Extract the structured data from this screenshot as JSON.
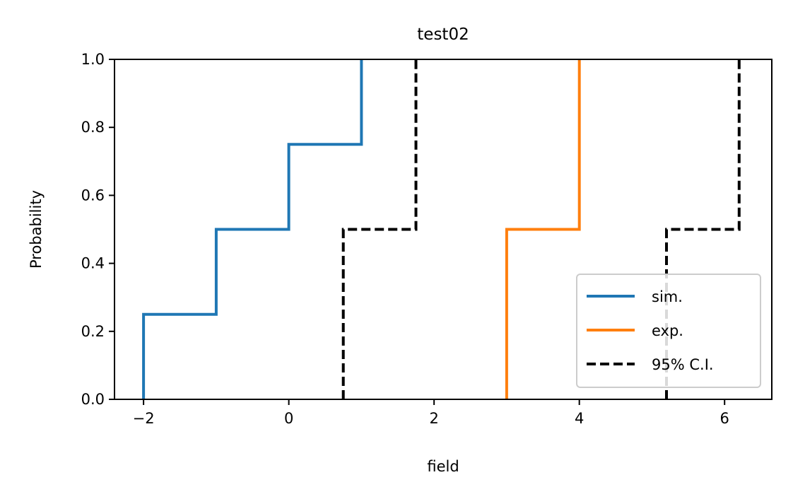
{
  "chart_data": {
    "type": "line",
    "title": "test02",
    "xlabel": "field",
    "ylabel": "Probability",
    "xlim": [
      -2.4,
      6.65
    ],
    "ylim": [
      0,
      1.0
    ],
    "xticks": [
      -2,
      0,
      2,
      4,
      6
    ],
    "xtick_labels": [
      "−2",
      "0",
      "2",
      "4",
      "6"
    ],
    "yticks": [
      0.0,
      0.2,
      0.4,
      0.6,
      0.8,
      1.0
    ],
    "ytick_labels": [
      "0.0",
      "0.2",
      "0.4",
      "0.6",
      "0.8",
      "1.0"
    ],
    "grid": false,
    "legend_position": "lower-right",
    "series": [
      {
        "name": "sim.",
        "color": "#1f77b4",
        "style": "solid",
        "points": [
          [
            -2,
            0
          ],
          [
            -2,
            0.25
          ],
          [
            -1,
            0.25
          ],
          [
            -1,
            0.5
          ],
          [
            0,
            0.5
          ],
          [
            0,
            0.75
          ],
          [
            1,
            0.75
          ],
          [
            1,
            1.0
          ]
        ]
      },
      {
        "name": "exp.",
        "color": "#ff7f0e",
        "style": "solid",
        "points": [
          [
            3,
            0
          ],
          [
            3,
            0.5
          ],
          [
            4,
            0.5
          ],
          [
            4,
            1.0
          ]
        ]
      },
      {
        "name": "95% C.I.",
        "color": "#000000",
        "style": "dashed",
        "segments": [
          [
            [
              0.75,
              0
            ],
            [
              0.75,
              0.5
            ],
            [
              1.75,
              0.5
            ],
            [
              1.75,
              1.0
            ]
          ],
          [
            [
              5.2,
              0
            ],
            [
              5.2,
              0.5
            ],
            [
              6.2,
              0.5
            ],
            [
              6.2,
              1.0
            ]
          ]
        ]
      }
    ]
  }
}
